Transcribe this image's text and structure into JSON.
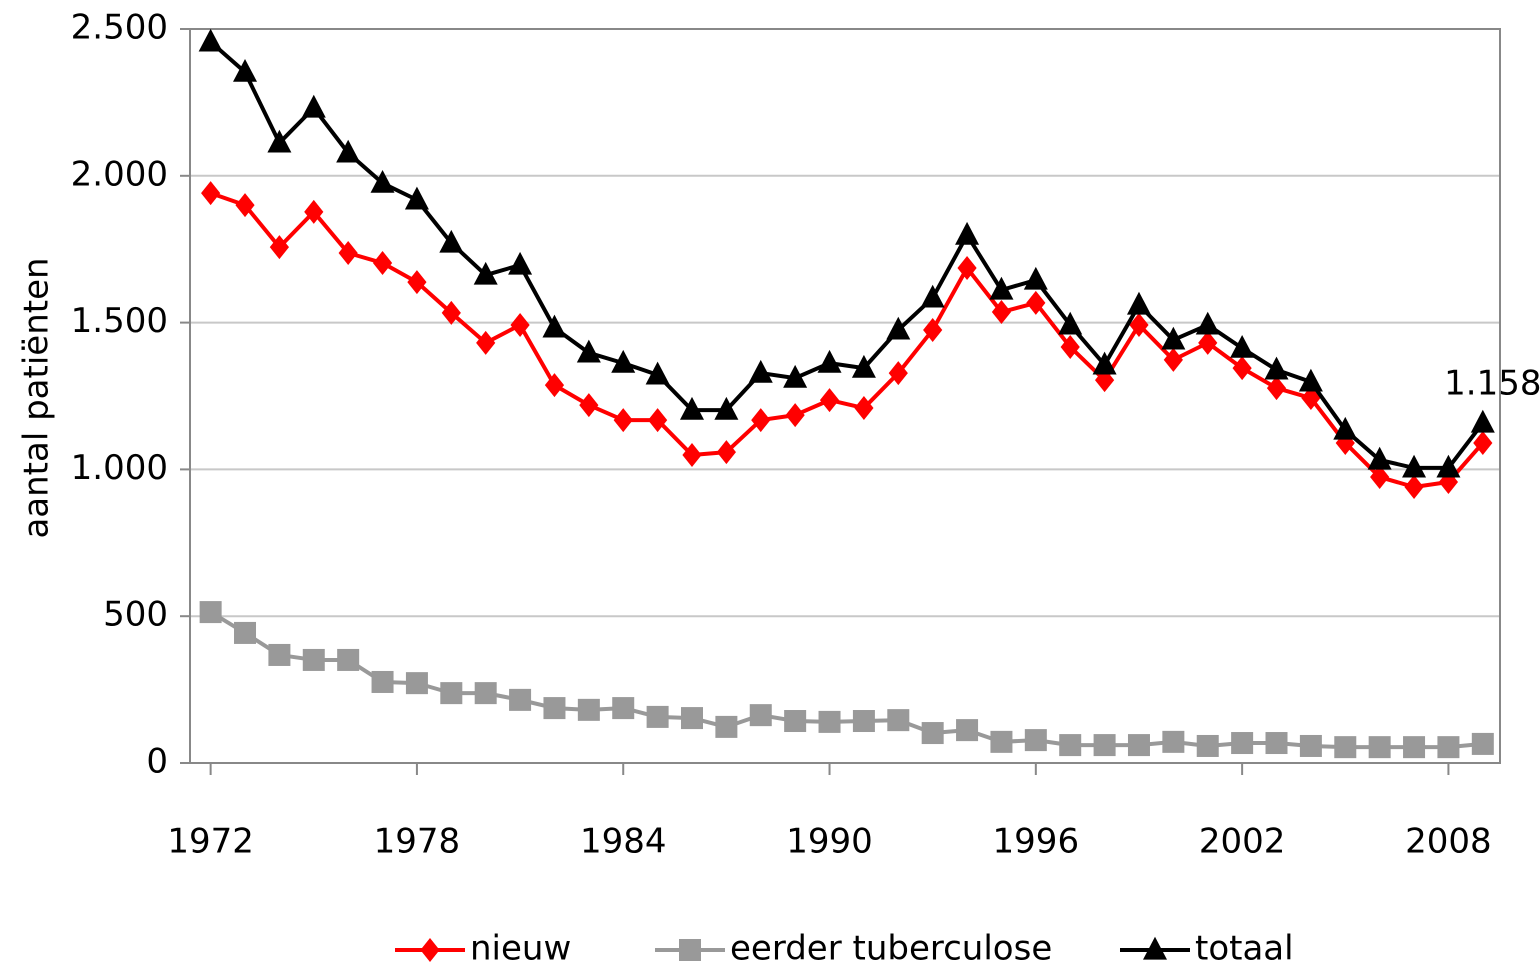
{
  "chart_data": {
    "type": "line",
    "y_label": "aantal patiënten",
    "x": [
      1972,
      1973,
      1974,
      1975,
      1976,
      1977,
      1978,
      1979,
      1980,
      1981,
      1982,
      1983,
      1984,
      1985,
      1986,
      1987,
      1988,
      1989,
      1990,
      1991,
      1992,
      1993,
      1994,
      1995,
      1996,
      1997,
      1998,
      1999,
      2000,
      2001,
      2002,
      2003,
      2004,
      2005,
      2006,
      2007,
      2008,
      2009
    ],
    "xlim": [
      1971.4,
      2009.5
    ],
    "xticks": [
      1972,
      1978,
      1984,
      1990,
      1996,
      2002,
      2008
    ],
    "ylim": [
      0,
      2500
    ],
    "yticks": [
      0,
      500,
      {
        "value": 1000,
        "label": "1.000"
      },
      {
        "value": 1500,
        "label": "1.500"
      },
      {
        "value": 2000,
        "label": "2.000"
      },
      {
        "value": 2500,
        "label": "2.500"
      }
    ],
    "grid": true,
    "legend": "bottom",
    "series": [
      {
        "name": "nieuw",
        "color": "#ff0000",
        "marker": "diamond",
        "values": [
          1941,
          1900,
          1757,
          1877,
          1737,
          1703,
          1638,
          1533,
          1431,
          1492,
          1287,
          1219,
          1168,
          1168,
          1049,
          1059,
          1168,
          1185,
          1236,
          1209,
          1328,
          1475,
          1686,
          1536,
          1567,
          1417,
          1304,
          1492,
          1373,
          1431,
          1345,
          1277,
          1243,
          1090,
          974,
          940,
          957,
          1090
        ]
      },
      {
        "name": "eerder tuberculose",
        "color": "#999999",
        "marker": "square",
        "values": [
          514,
          443,
          368,
          351,
          351,
          276,
          272,
          238,
          238,
          215,
          187,
          181,
          187,
          157,
          153,
          123,
          163,
          143,
          140,
          143,
          146,
          102,
          112,
          72,
          78,
          61,
          61,
          61,
          72,
          58,
          68,
          68,
          58,
          54,
          54,
          54,
          54,
          65
        ]
      },
      {
        "name": "totaal",
        "color": "#000000",
        "marker": "triangle",
        "values": [
          2456,
          2353,
          2112,
          2231,
          2078,
          1975,
          1918,
          1771,
          1662,
          1696,
          1482,
          1397,
          1362,
          1322,
          1202,
          1202,
          1328,
          1311,
          1362,
          1345,
          1475,
          1584,
          1798,
          1611,
          1645,
          1492,
          1356,
          1560,
          1441,
          1492,
          1413,
          1339,
          1298,
          1134,
          1032,
          1005,
          1005,
          1158
        ],
        "value_labels": [
          null,
          null,
          null,
          null,
          null,
          null,
          null,
          null,
          null,
          null,
          null,
          null,
          null,
          null,
          null,
          null,
          null,
          null,
          null,
          null,
          null,
          null,
          null,
          null,
          null,
          null,
          null,
          null,
          null,
          null,
          null,
          null,
          null,
          null,
          null,
          null,
          null,
          "1.158"
        ]
      }
    ]
  }
}
